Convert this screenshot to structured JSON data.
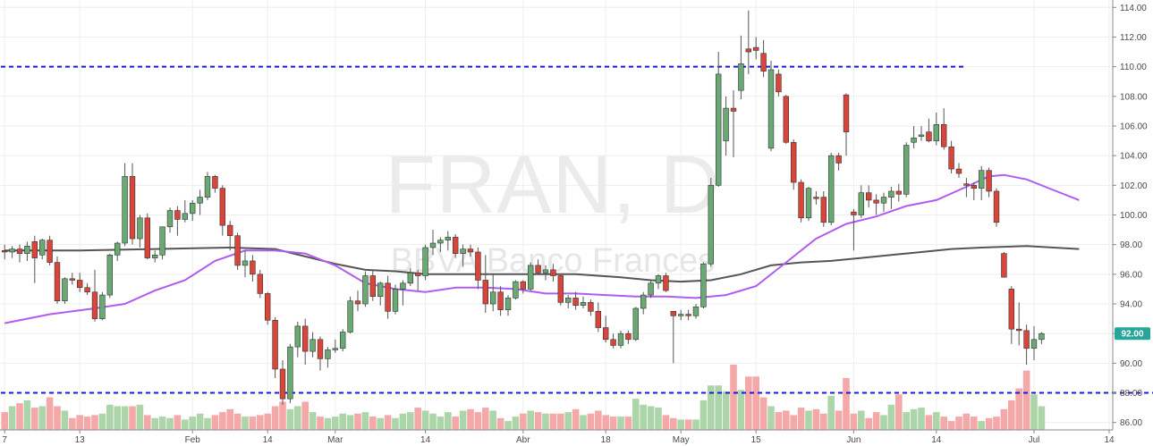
{
  "chart_data": {
    "type": "candlestick",
    "watermark": {
      "symbol": "FRAN, D",
      "name": "BBVA Banco Frances"
    },
    "ylim": [
      85.5,
      114.5
    ],
    "volume_base": 85.5,
    "yticks": [
      {
        "value": 86,
        "label": "86.00"
      },
      {
        "value": 88,
        "label": "88.00"
      },
      {
        "value": 90,
        "label": "90.00"
      },
      {
        "value": 92,
        "label": "92.00"
      },
      {
        "value": 94,
        "label": "94.00"
      },
      {
        "value": 96,
        "label": "96.00"
      },
      {
        "value": 98,
        "label": "98.00"
      },
      {
        "value": 100,
        "label": "100.00"
      },
      {
        "value": 102,
        "label": "102.00"
      },
      {
        "value": 104,
        "label": "104.00"
      },
      {
        "value": 106,
        "label": "106.00"
      },
      {
        "value": 108,
        "label": "108.00"
      },
      {
        "value": 110,
        "label": "110.00"
      },
      {
        "value": 112,
        "label": "112.00"
      },
      {
        "value": 114,
        "label": "114.00"
      }
    ],
    "xticks": [
      {
        "index": 0,
        "label": "7"
      },
      {
        "index": 10,
        "label": "13"
      },
      {
        "index": 25,
        "label": "Feb"
      },
      {
        "index": 35,
        "label": "14"
      },
      {
        "index": 44,
        "label": "Mar"
      },
      {
        "index": 56,
        "label": "14"
      },
      {
        "index": 69,
        "label": "Abr"
      },
      {
        "index": 80,
        "label": "18"
      },
      {
        "index": 90,
        "label": "May"
      },
      {
        "index": 100,
        "label": "15"
      },
      {
        "index": 113,
        "label": "Jun"
      },
      {
        "index": 124,
        "label": "14"
      },
      {
        "index": 137,
        "label": "Jul"
      },
      {
        "index": 147,
        "label": "14"
      }
    ],
    "last_price": {
      "value": 92.0,
      "label": "92.00",
      "color": "#26a69a"
    },
    "horizontal_lines": [
      {
        "value": 110.0,
        "from_index": 0,
        "to_index": 128,
        "color": "#1a1adb"
      },
      {
        "value": 88.0,
        "from_index": 0,
        "to_index": 154,
        "color": "#1a1adb"
      }
    ],
    "colors": {
      "up_body": "#6aa874",
      "down_body": "#d9453a",
      "wick": "#555555",
      "up_volume": "#a8d4a4",
      "down_volume": "#f4a3a3",
      "ma_fast": "#b05cf0",
      "ma_slow": "#555555"
    },
    "candles": [
      [
        97.6,
        98.0,
        97.0,
        97.5,
        1.2
      ],
      [
        97.5,
        97.9,
        97.1,
        97.7,
        1.6
      ],
      [
        97.7,
        98.0,
        96.8,
        97.4,
        1.8
      ],
      [
        97.4,
        98.2,
        96.9,
        97.9,
        2.0
      ],
      [
        98.2,
        98.6,
        95.4,
        97.1,
        1.5
      ],
      [
        97.3,
        98.4,
        97.0,
        98.3,
        1.6
      ],
      [
        98.3,
        98.6,
        96.6,
        96.8,
        2.2
      ],
      [
        96.8,
        97.2,
        94.0,
        94.2,
        1.6
      ],
      [
        94.2,
        95.8,
        94.0,
        95.7,
        1.3
      ],
      [
        95.7,
        96.1,
        95.3,
        95.6,
        0.8
      ],
      [
        95.6,
        96.1,
        94.8,
        95.1,
        1.0
      ],
      [
        95.1,
        95.4,
        94.6,
        94.8,
        0.9
      ],
      [
        94.8,
        96.3,
        92.8,
        93.0,
        1.0
      ],
      [
        93.0,
        94.8,
        92.9,
        94.6,
        1.1
      ],
      [
        94.6,
        97.4,
        94.4,
        97.3,
        1.7
      ],
      [
        97.3,
        98.2,
        96.9,
        98.1,
        1.6
      ],
      [
        98.1,
        103.5,
        97.9,
        102.6,
        1.6
      ],
      [
        102.6,
        103.5,
        98.0,
        98.4,
        1.6
      ],
      [
        98.4,
        100.0,
        97.8,
        99.8,
        1.7
      ],
      [
        99.8,
        100.1,
        97.0,
        97.1,
        1.0
      ],
      [
        97.1,
        97.6,
        96.8,
        97.3,
        0.8
      ],
      [
        97.3,
        99.2,
        97.0,
        99.2,
        0.9
      ],
      [
        99.2,
        100.5,
        98.8,
        100.3,
        0.8
      ],
      [
        100.3,
        100.6,
        98.6,
        99.7,
        1.0
      ],
      [
        99.7,
        101.0,
        99.5,
        100.1,
        0.7
      ],
      [
        100.1,
        101.0,
        99.6,
        100.8,
        0.9
      ],
      [
        100.8,
        101.7,
        100.0,
        101.2,
        1.1
      ],
      [
        101.2,
        102.9,
        101.0,
        102.6,
        0.8
      ],
      [
        102.6,
        102.7,
        101.5,
        101.8,
        1.0
      ],
      [
        101.8,
        102.0,
        98.6,
        99.3,
        1.2
      ],
      [
        99.3,
        99.6,
        97.6,
        98.6,
        1.4
      ],
      [
        98.6,
        98.8,
        96.3,
        96.6,
        1.1
      ],
      [
        96.6,
        97.6,
        95.8,
        96.9,
        0.9
      ],
      [
        96.9,
        97.3,
        95.5,
        96.0,
        0.9
      ],
      [
        96.0,
        96.3,
        94.4,
        94.7,
        1.0
      ],
      [
        94.7,
        94.8,
        92.6,
        92.9,
        1.1
      ],
      [
        92.9,
        93.1,
        89.0,
        89.6,
        1.6
      ],
      [
        89.6,
        90.2,
        87.2,
        87.6,
        1.9
      ],
      [
        87.6,
        91.3,
        87.3,
        91.1,
        1.4
      ],
      [
        91.1,
        92.8,
        90.4,
        92.5,
        1.6
      ],
      [
        92.5,
        93.0,
        89.9,
        90.8,
        1.9
      ],
      [
        90.8,
        92.1,
        90.4,
        91.6,
        1.2
      ],
      [
        91.6,
        91.8,
        89.5,
        90.3,
        0.9
      ],
      [
        90.3,
        91.1,
        89.7,
        90.9,
        0.8
      ],
      [
        90.9,
        91.6,
        90.7,
        91.0,
        0.9
      ],
      [
        91.0,
        92.3,
        90.8,
        92.1,
        1.1
      ],
      [
        92.1,
        94.5,
        92.0,
        94.2,
        1.0
      ],
      [
        94.2,
        94.9,
        93.5,
        94.0,
        1.1
      ],
      [
        94.0,
        96.2,
        93.8,
        95.9,
        1.2
      ],
      [
        95.9,
        96.3,
        94.2,
        94.5,
        0.9
      ],
      [
        94.5,
        95.5,
        93.9,
        95.4,
        0.8
      ],
      [
        95.4,
        95.9,
        93.0,
        93.5,
        1.0
      ],
      [
        93.5,
        95.3,
        93.3,
        95.0,
        0.8
      ],
      [
        95.0,
        95.6,
        93.9,
        95.4,
        1.1
      ],
      [
        95.4,
        96.4,
        95.2,
        96.1,
        1.2
      ],
      [
        96.1,
        96.3,
        94.9,
        95.9,
        1.5
      ],
      [
        95.9,
        98.0,
        95.6,
        97.8,
        1.3
      ],
      [
        97.8,
        99.0,
        97.3,
        98.1,
        1.1
      ],
      [
        98.1,
        98.5,
        97.5,
        98.3,
        0.9
      ],
      [
        98.3,
        98.9,
        97.6,
        98.5,
        1.2
      ],
      [
        98.5,
        98.7,
        97.1,
        97.4,
        0.9
      ],
      [
        97.4,
        98.0,
        96.5,
        97.7,
        1.3
      ],
      [
        97.7,
        98.0,
        97.2,
        97.5,
        1.4
      ],
      [
        97.5,
        97.8,
        95.0,
        95.6,
        1.2
      ],
      [
        95.6,
        97.3,
        93.4,
        94.0,
        1.5
      ],
      [
        94.0,
        96.0,
        93.5,
        94.8,
        1.3
      ],
      [
        94.8,
        95.2,
        93.2,
        93.6,
        0.8
      ],
      [
        93.6,
        94.6,
        93.2,
        94.4,
        0.6
      ],
      [
        94.4,
        95.6,
        94.3,
        95.5,
        0.9
      ],
      [
        95.5,
        95.6,
        94.7,
        95.0,
        1.1
      ],
      [
        95.0,
        96.8,
        94.9,
        96.6,
        1.3
      ],
      [
        96.6,
        97.0,
        96.0,
        96.1,
        1.2
      ],
      [
        96.1,
        96.6,
        95.6,
        96.3,
        1.1
      ],
      [
        96.3,
        96.7,
        95.5,
        95.9,
        1.1
      ],
      [
        95.9,
        96.0,
        93.9,
        94.1,
        1.1
      ],
      [
        94.1,
        94.6,
        93.7,
        94.4,
        1.2
      ],
      [
        94.4,
        94.8,
        93.6,
        93.9,
        1.4
      ],
      [
        93.9,
        94.5,
        93.7,
        94.1,
        1.0
      ],
      [
        94.1,
        94.3,
        93.2,
        93.5,
        1.1
      ],
      [
        93.5,
        94.1,
        92.1,
        92.4,
        1.3
      ],
      [
        92.4,
        93.2,
        91.4,
        91.6,
        1.0
      ],
      [
        91.6,
        92.0,
        91.0,
        91.2,
        0.9
      ],
      [
        91.2,
        92.2,
        91.0,
        92.0,
        0.9
      ],
      [
        92.0,
        92.2,
        91.3,
        91.6,
        0.9
      ],
      [
        91.6,
        93.8,
        91.5,
        93.7,
        2.1
      ],
      [
        93.7,
        94.8,
        93.3,
        94.6,
        1.7
      ],
      [
        94.6,
        95.6,
        94.4,
        95.4,
        1.6
      ],
      [
        95.4,
        96.0,
        95.0,
        95.9,
        1.5
      ],
      [
        95.9,
        96.1,
        94.8,
        94.9,
        1.0
      ],
      [
        93.5,
        93.5,
        90.0,
        93.2,
        0.8
      ],
      [
        93.2,
        93.6,
        92.9,
        93.3,
        0.7
      ],
      [
        93.3,
        93.6,
        92.9,
        93.2,
        0.7
      ],
      [
        93.2,
        94.0,
        93.0,
        93.8,
        0.7
      ],
      [
        93.8,
        96.8,
        93.7,
        96.7,
        2.0
      ],
      [
        96.7,
        102.5,
        96.5,
        102.0,
        3.0
      ],
      [
        102.0,
        111.0,
        101.9,
        109.5,
        3.0
      ],
      [
        105.0,
        108.0,
        104.0,
        107.2,
        2.6
      ],
      [
        107.2,
        108.4,
        103.9,
        107.0,
        4.4
      ],
      [
        108.4,
        112.1,
        107.8,
        110.2,
        2.7
      ],
      [
        111.2,
        113.8,
        109.5,
        111.0,
        3.6
      ],
      [
        111.3,
        112.0,
        110.5,
        111.1,
        3.6
      ],
      [
        110.9,
        111.8,
        109.3,
        109.7,
        2.2
      ],
      [
        104.5,
        110.4,
        104.3,
        109.8,
        1.6
      ],
      [
        109.5,
        109.8,
        108.0,
        108.3,
        1.2
      ],
      [
        108.0,
        108.1,
        104.8,
        104.9,
        1.3
      ],
      [
        104.9,
        105.1,
        101.7,
        102.2,
        1.0
      ],
      [
        102.2,
        102.4,
        99.5,
        99.8,
        1.5
      ],
      [
        99.8,
        101.9,
        99.6,
        101.8,
        1.3
      ],
      [
        101.2,
        101.6,
        100.7,
        101.1,
        1.4
      ],
      [
        101.2,
        101.6,
        99.2,
        99.5,
        1.1
      ],
      [
        99.5,
        104.2,
        99.3,
        104.0,
        2.3
      ],
      [
        104.0,
        104.2,
        103.0,
        103.5,
        1.3
      ],
      [
        108.1,
        108.2,
        104.0,
        105.6,
        3.5
      ],
      [
        100.2,
        100.4,
        97.6,
        100.0,
        1.1
      ],
      [
        100.0,
        102.0,
        99.8,
        101.5,
        1.3
      ],
      [
        101.5,
        102.0,
        100.5,
        101.0,
        0.8
      ],
      [
        101.0,
        101.4,
        100.0,
        100.8,
        1.2
      ],
      [
        100.8,
        101.5,
        100.2,
        101.2,
        1.0
      ],
      [
        101.2,
        101.9,
        100.4,
        101.6,
        1.7
      ],
      [
        101.6,
        102.1,
        100.9,
        101.4,
        2.4
      ],
      [
        101.4,
        104.9,
        101.2,
        104.7,
        1.2
      ],
      [
        104.9,
        106.0,
        104.5,
        105.2,
        1.4
      ],
      [
        105.3,
        106.0,
        105.0,
        105.4,
        1.5
      ],
      [
        105.6,
        106.5,
        104.9,
        105.0,
        1.0
      ],
      [
        105.0,
        106.9,
        104.7,
        106.1,
        1.2
      ],
      [
        106.1,
        107.2,
        104.4,
        104.6,
        0.9
      ],
      [
        104.6,
        105.0,
        102.8,
        103.1,
        0.6
      ],
      [
        103.1,
        103.5,
        102.5,
        102.8,
        0.9
      ],
      [
        102.1,
        102.5,
        101.2,
        102.0,
        1.1
      ],
      [
        102.0,
        102.2,
        101.0,
        101.8,
        0.9
      ],
      [
        101.8,
        103.3,
        101.0,
        103.0,
        0.6
      ],
      [
        103.0,
        103.2,
        101.2,
        101.6,
        0.8
      ],
      [
        101.6,
        101.8,
        99.2,
        99.5,
        0.9
      ],
      [
        97.4,
        97.5,
        95.8,
        95.8,
        1.4
      ],
      [
        95.0,
        95.2,
        91.3,
        92.3,
        2.0
      ],
      [
        92.3,
        94.1,
        91.2,
        92.2,
        2.8
      ],
      [
        92.2,
        92.6,
        89.9,
        91.0,
        4.0
      ],
      [
        91.0,
        92.5,
        90.2,
        91.6,
        2.4
      ],
      [
        91.6,
        92.1,
        91.3,
        92.0,
        1.6
      ]
    ],
    "ma_fast": [
      [
        0,
        92.7
      ],
      [
        6,
        93.3
      ],
      [
        12,
        93.7
      ],
      [
        16,
        94.0
      ],
      [
        20,
        94.9
      ],
      [
        24,
        95.6
      ],
      [
        28,
        96.9
      ],
      [
        32,
        97.6
      ],
      [
        36,
        97.6
      ],
      [
        40,
        97.4
      ],
      [
        44,
        96.6
      ],
      [
        48,
        95.4
      ],
      [
        52,
        95.0
      ],
      [
        56,
        94.8
      ],
      [
        60,
        95.1
      ],
      [
        64,
        95.1
      ],
      [
        68,
        95.0
      ],
      [
        72,
        94.7
      ],
      [
        76,
        94.7
      ],
      [
        80,
        94.6
      ],
      [
        84,
        94.5
      ],
      [
        88,
        94.5
      ],
      [
        92,
        94.4
      ],
      [
        96,
        94.6
      ],
      [
        100,
        95.2
      ],
      [
        104,
        96.8
      ],
      [
        108,
        98.4
      ],
      [
        112,
        99.4
      ],
      [
        116,
        99.9
      ],
      [
        120,
        100.6
      ],
      [
        124,
        101.0
      ],
      [
        128,
        101.9
      ],
      [
        131,
        102.6
      ],
      [
        133,
        102.7
      ],
      [
        136,
        102.4
      ],
      [
        140,
        101.6
      ],
      [
        143,
        101.0
      ]
    ],
    "ma_slow": [
      [
        0,
        97.6
      ],
      [
        10,
        97.6
      ],
      [
        20,
        97.7
      ],
      [
        30,
        97.8
      ],
      [
        36,
        97.7
      ],
      [
        40,
        97.2
      ],
      [
        44,
        96.7
      ],
      [
        48,
        96.3
      ],
      [
        52,
        96.2
      ],
      [
        56,
        96.0
      ],
      [
        60,
        96.0
      ],
      [
        64,
        96.0
      ],
      [
        70,
        96.0
      ],
      [
        76,
        96.0
      ],
      [
        82,
        95.8
      ],
      [
        86,
        95.6
      ],
      [
        90,
        95.5
      ],
      [
        94,
        95.6
      ],
      [
        98,
        96.0
      ],
      [
        102,
        96.6
      ],
      [
        106,
        96.8
      ],
      [
        110,
        96.9
      ],
      [
        114,
        97.1
      ],
      [
        118,
        97.3
      ],
      [
        122,
        97.5
      ],
      [
        126,
        97.7
      ],
      [
        130,
        97.8
      ],
      [
        136,
        97.9
      ],
      [
        143,
        97.7
      ]
    ]
  }
}
